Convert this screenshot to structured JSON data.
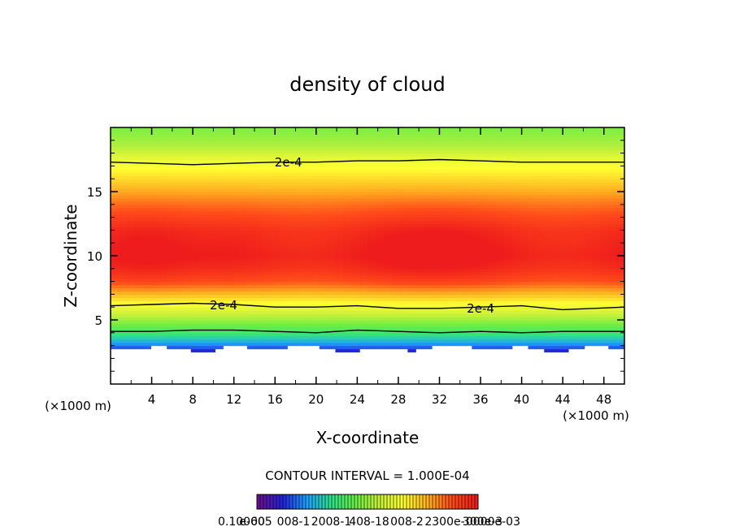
{
  "chart_data": {
    "type": "heatmap",
    "title": "density of cloud",
    "xlabel": "X-coordinate",
    "ylabel": "Z-coordinate",
    "x_unit": "(×1000 m)",
    "z_unit": "(×1000 m)",
    "xlim": [
      0,
      50
    ],
    "ylim": [
      0,
      20
    ],
    "x_ticks": [
      4,
      8,
      12,
      16,
      20,
      24,
      28,
      32,
      36,
      40,
      44,
      48
    ],
    "y_ticks": [
      5,
      10,
      15
    ],
    "contour_interval_label": "CONTOUR INTERVAL = 1.000E-04",
    "contour_labels": [
      "2e-4",
      "2e-4",
      "2e-4"
    ],
    "colorbar_labels": [
      "0.10000",
      "e-605",
      "008-1",
      "2008-1",
      "408-18",
      "008-2",
      "2300e-",
      "300e-3",
      "0000e-03"
    ],
    "colormap": [
      "#6b0f8f",
      "#2222d8",
      "#1ea0ff",
      "#2ee08a",
      "#66ee44",
      "#c8f03a",
      "#ffff33",
      "#ffb020",
      "#ff4a1a",
      "#ee1c1c"
    ],
    "profile": {
      "z": [
        2.5,
        3.0,
        3.5,
        4.0,
        4.5,
        5.0,
        5.5,
        6.0,
        7.0,
        8.0,
        9.0,
        10.0,
        12.0,
        14.0,
        15.0,
        16.0,
        17.0,
        17.5,
        18.5,
        20.0
      ],
      "density": [
        0.03,
        0.06,
        0.09,
        0.12,
        0.14,
        0.16,
        0.18,
        0.2,
        0.24,
        0.28,
        0.3,
        0.31,
        0.3,
        0.27,
        0.25,
        0.23,
        0.21,
        0.2,
        0.17,
        0.15
      ]
    },
    "cloud_base_z": 2.8,
    "contour_lines": [
      {
        "level": "2e-4",
        "z": [
          17.3,
          17.2,
          17.1,
          17.2,
          17.3,
          17.3,
          17.4,
          17.4,
          17.5,
          17.4,
          17.3,
          17.3,
          17.3
        ]
      },
      {
        "level": "2e-4",
        "z": [
          6.1,
          6.2,
          6.3,
          6.2,
          6.0,
          6.0,
          6.1,
          5.9,
          5.9,
          6.0,
          6.1,
          5.8,
          6.0
        ]
      },
      {
        "level": "1e-4",
        "z": [
          4.1,
          4.1,
          4.2,
          4.2,
          4.1,
          4.0,
          4.2,
          4.1,
          4.0,
          4.1,
          4.0,
          4.1,
          4.1
        ]
      }
    ],
    "contour_x": [
      0,
      4,
      8,
      12,
      16,
      20,
      24,
      28,
      32,
      36,
      40,
      44,
      50
    ]
  }
}
